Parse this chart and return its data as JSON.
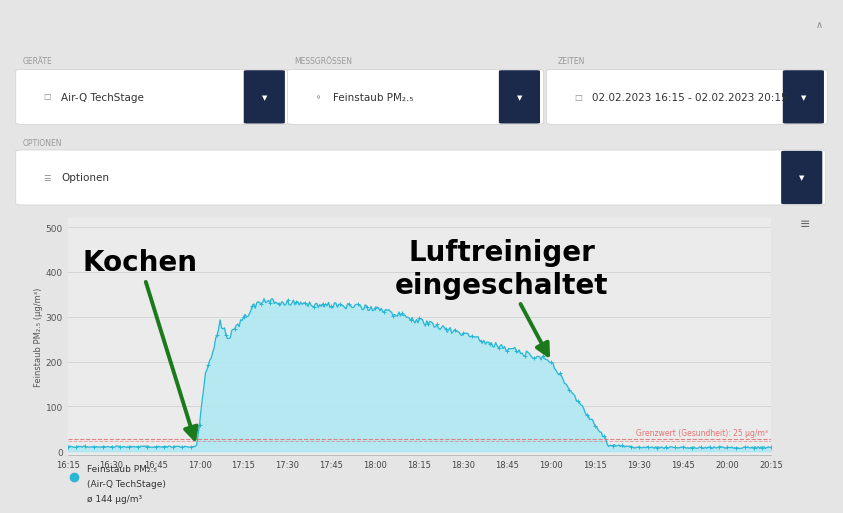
{
  "bg_color": "#e5e5e5",
  "chart_bg": "#ebebeb",
  "white": "#ffffff",
  "dark_btn": "#1b2a4a",
  "time_labels": [
    "16:15",
    "16:30",
    "16:45",
    "17:00",
    "17:15",
    "17:30",
    "17:45",
    "18:00",
    "18:15",
    "18:30",
    "18:45",
    "19:00",
    "19:15",
    "19:30",
    "19:45",
    "20:00",
    "20:15"
  ],
  "yticks": [
    0,
    100,
    200,
    300,
    400,
    500
  ],
  "ylabel": "Feinstaub PM₂.₅ (µg/m³)",
  "line_color": "#29b6d4",
  "fill_color": "#ade8f4",
  "dot_color": "#29b6d4",
  "threshold_value": 25,
  "threshold_color": "#e57373",
  "threshold_label": "Grenzwert (Gesundheit): 25 µg/m³",
  "annotation_kochen": "Kochen",
  "annotation_luft": "Luftreiniger\neingeschaltet",
  "arrow_color": "#1b7a1b",
  "legend_label1": "Feinstaub PM₂.₅",
  "legend_label2": "(Air-Q TechStage)",
  "legend_label3": "ø 144 µg/m³",
  "geraete_label": "Air-Q TechStage",
  "messgroessen_label": "Feinstaub PM₂.₅",
  "zeiten_label": "02.02.2023 16:15 - 02.02.2023 20:15",
  "optionen_label": "Optionen",
  "geraete_title": "GERÄTE",
  "messgroessen_title": "MESSGRÖSSEN",
  "zeiten_title": "ZEITEN",
  "optionen_title": "OPTIONEN"
}
